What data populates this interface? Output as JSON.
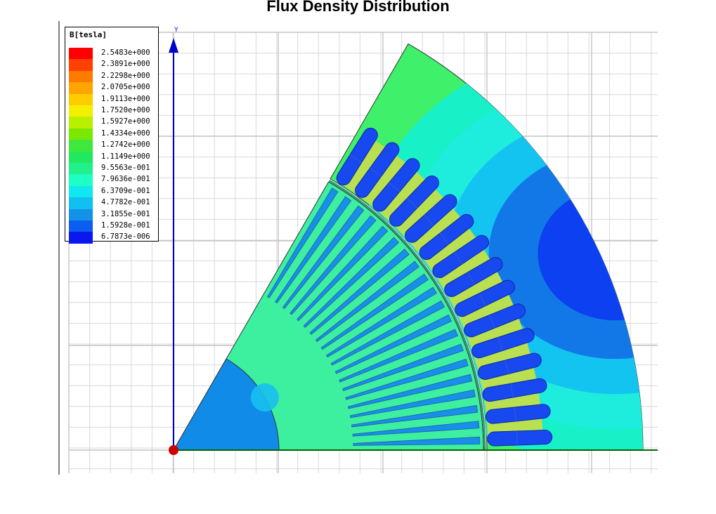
{
  "title": "Flux Density Distribution",
  "legend": {
    "title": "B[tesla]",
    "entries": [
      {
        "label": "2.5483e+000",
        "color": "#ff0000"
      },
      {
        "label": "2.3891e+000",
        "color": "#ff4000"
      },
      {
        "label": "2.2298e+000",
        "color": "#ff7a00"
      },
      {
        "label": "2.0705e+000",
        "color": "#ffa400"
      },
      {
        "label": "1.9113e+000",
        "color": "#ffcc00"
      },
      {
        "label": "1.7520e+000",
        "color": "#f4f000"
      },
      {
        "label": "1.5927e+000",
        "color": "#b8f000"
      },
      {
        "label": "1.4334e+000",
        "color": "#7ae800"
      },
      {
        "label": "1.2742e+000",
        "color": "#3ee83c"
      },
      {
        "label": "1.1149e+000",
        "color": "#22e860"
      },
      {
        "label": "9.5563e-001",
        "color": "#22f08c"
      },
      {
        "label": "7.9636e-001",
        "color": "#1effc4"
      },
      {
        "label": "6.3709e-001",
        "color": "#10e8f0"
      },
      {
        "label": "4.7782e-001",
        "color": "#10c0f0"
      },
      {
        "label": "3.1855e-001",
        "color": "#1492e8"
      },
      {
        "label": "1.5928e-001",
        "color": "#0c5ef0"
      },
      {
        "label": "6.7873e-006",
        "color": "#0a18f0"
      }
    ]
  },
  "axis": {
    "y_label": "Y"
  },
  "colors": {
    "stator_outer": "#3ef06a",
    "stator_mid": "#18f0c8",
    "stator_inner_band": "#1eecdc",
    "stator_deep": "#14c4f0",
    "stator_core": "#1278e8",
    "stator_min": "#0c40f0",
    "stator_teeth": "#b8e050",
    "slot_conductor": "#1848f0",
    "rotor": "#3cf0a0",
    "rotor_bar": "#1690e8",
    "shaft": "#108ce8",
    "axis": "#0000cc",
    "origin": "#cc0000",
    "grid": "#d8d8d8"
  }
}
